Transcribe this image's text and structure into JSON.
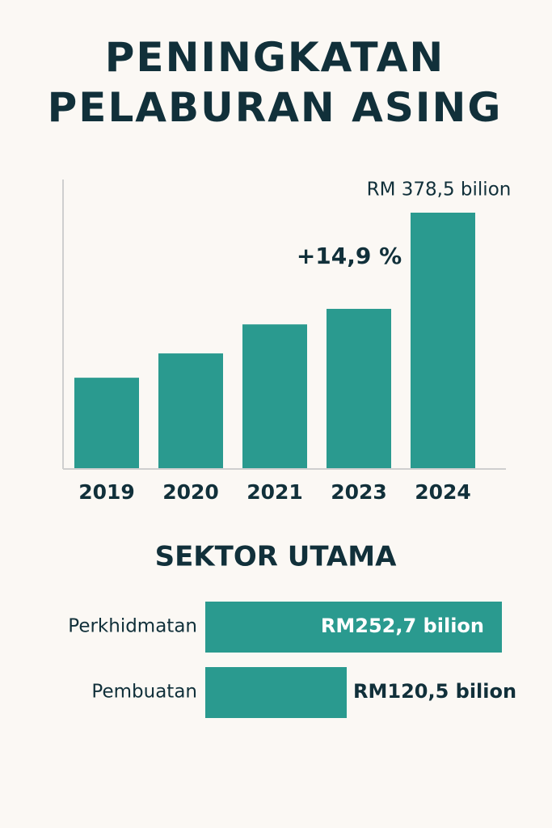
{
  "title": "PENINGKATAN PELABURAN ASING",
  "chart_data": [
    {
      "type": "bar",
      "categories": [
        "2019",
        "2020",
        "2021",
        "2023",
        "2024"
      ],
      "values": [
        134,
        170,
        213,
        236,
        378.5
      ],
      "value_labels": [
        null,
        null,
        null,
        null,
        "RM 378,5 bilion"
      ],
      "annotation": "+14,9 %",
      "color": "#2a9a8f"
    },
    {
      "type": "hbar",
      "title": "SEKTOR UTAMA",
      "categories": [
        "Perkhidmatan",
        "Pembuatan"
      ],
      "values": [
        252.7,
        120.5
      ],
      "value_labels": [
        "RM252,7 bilion",
        "RM120,5 bilion"
      ],
      "color": "#2a9a8f"
    }
  ]
}
